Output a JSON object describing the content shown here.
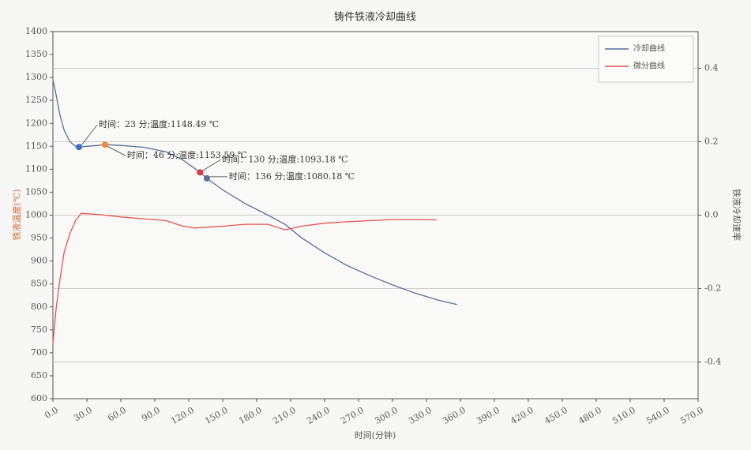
{
  "chart_data": {
    "type": "line",
    "title": "铸件铁液冷却曲线",
    "xlabel": "时间(分钟)",
    "ylabel": "铁液温度(℃)",
    "y2label": "铁液冷却速率",
    "xlim": [
      0,
      570
    ],
    "xticks": [
      {
        "value": 0,
        "label": "0.0"
      },
      {
        "value": 30,
        "label": "30.0"
      },
      {
        "value": 60,
        "label": "60.0"
      },
      {
        "value": 90,
        "label": "90.0"
      },
      {
        "value": 120,
        "label": "120.0"
      },
      {
        "value": 150,
        "label": "150.0"
      },
      {
        "value": 180,
        "label": "180.0"
      },
      {
        "value": 210,
        "label": "210.0"
      },
      {
        "value": 240,
        "label": "240.0"
      },
      {
        "value": 270,
        "label": "270.0"
      },
      {
        "value": 300,
        "label": "300.0"
      },
      {
        "value": 330,
        "label": "330.0"
      },
      {
        "value": 360,
        "label": "360.0"
      },
      {
        "value": 390,
        "label": "390.0"
      },
      {
        "value": 420,
        "label": "420.0"
      },
      {
        "value": 450,
        "label": "450.0"
      },
      {
        "value": 480,
        "label": "480.0"
      },
      {
        "value": 510,
        "label": "510.0"
      },
      {
        "value": 540,
        "label": "540.0"
      },
      {
        "value": 570,
        "label": "570.0"
      }
    ],
    "ylim": [
      600,
      1400
    ],
    "yticks": [
      600,
      650,
      700,
      750,
      800,
      850,
      900,
      950,
      1000,
      1050,
      1100,
      1150,
      1200,
      1250,
      1300,
      1350,
      1400
    ],
    "y2lim": [
      -0.5,
      0.5
    ],
    "y2ticks": [
      -0.4,
      -0.2,
      {
        "value": 0,
        "label": "0.0"
      },
      0.2,
      0.4
    ],
    "grid": "y2",
    "legend": "upper right",
    "series": [
      {
        "name": "冷却曲线",
        "color": "#5b6e9e",
        "x": [
          0,
          3,
          6,
          10,
          15,
          20,
          23,
          30,
          40,
          46,
          60,
          80,
          100,
          115,
          130,
          136,
          150,
          170,
          190,
          205,
          220,
          240,
          260,
          280,
          300,
          320,
          340,
          357
        ],
        "values": [
          1295,
          1260,
          1220,
          1185,
          1160,
          1150,
          1148.49,
          1150,
          1152,
          1153.59,
          1152,
          1148,
          1138,
          1120,
          1093.18,
          1080.18,
          1055,
          1025,
          1000,
          980,
          950,
          918,
          890,
          868,
          848,
          830,
          815,
          805
        ]
      },
      {
        "name": "微分曲线",
        "color": "#e8534f",
        "axis": "y2",
        "x": [
          0,
          3,
          6,
          10,
          15,
          20,
          25,
          40,
          60,
          80,
          100,
          115,
          125,
          150,
          170,
          190,
          205,
          220,
          240,
          260,
          280,
          300,
          320,
          339
        ],
        "values": [
          -0.35,
          -0.25,
          -0.18,
          -0.1,
          -0.05,
          -0.015,
          0.005,
          0.002,
          -0.005,
          -0.01,
          -0.015,
          -0.03,
          -0.035,
          -0.03,
          -0.025,
          -0.025,
          -0.04,
          -0.03,
          -0.022,
          -0.018,
          -0.015,
          -0.012,
          -0.012,
          -0.013
        ]
      }
    ],
    "annotations": [
      {
        "text": "时间：23 分;温度:1148.49 ℃",
        "x": 23,
        "y": 1148.49,
        "color": "#3a6fc4"
      },
      {
        "text": "时间：46 分;温度:1153.59 ℃",
        "x": 46,
        "y": 1153.59,
        "color": "#f0883a"
      },
      {
        "text": "时间：130 分;温度:1093.18 ℃",
        "x": 130,
        "y": 1093.18,
        "color": "#e03a3a"
      },
      {
        "text": "时间：136 分;温度:1080.18 ℃",
        "x": 136,
        "y": 1080.18,
        "color": "#5b6e9e"
      }
    ]
  }
}
